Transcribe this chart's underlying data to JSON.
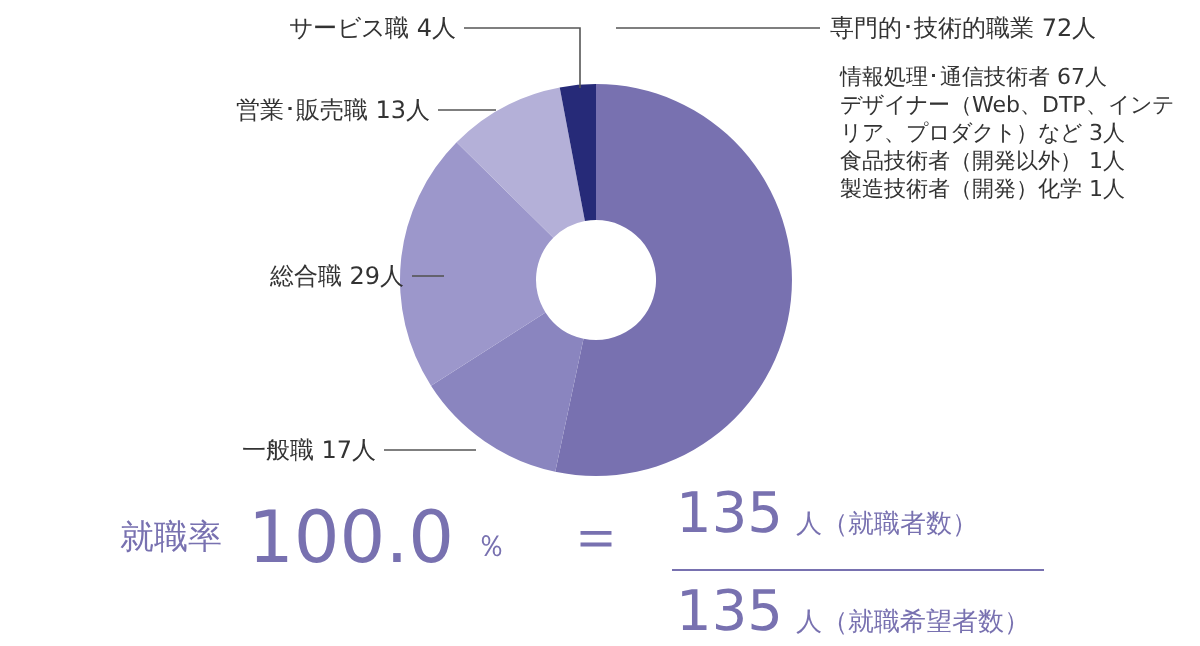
{
  "chart_data": {
    "type": "donut",
    "categories": [
      "専門的･技術的職業",
      "一般職",
      "総合職",
      "営業･販売職",
      "サービス職"
    ],
    "values": [
      72,
      17,
      29,
      13,
      4
    ],
    "value_labels": [
      "72人",
      "17人",
      "29人",
      "13人",
      "4人"
    ],
    "colors": [
      "#7871b0",
      "#8a85bf",
      "#9c97cb",
      "#b4b0d8",
      "#262a78"
    ],
    "annotations": [
      "情報処理･通信技術者 67人",
      "デザイナー（Web、DTP、インテリア、プロダクト）など 3人",
      "食品技術者（開発以外） 1人",
      "製造技術者（開発）化学 1人",
      "就職率",
      "100.0",
      "％",
      "＝",
      "135",
      "人（就職者数）",
      "135",
      "人（就職希望者数）"
    ]
  }
}
